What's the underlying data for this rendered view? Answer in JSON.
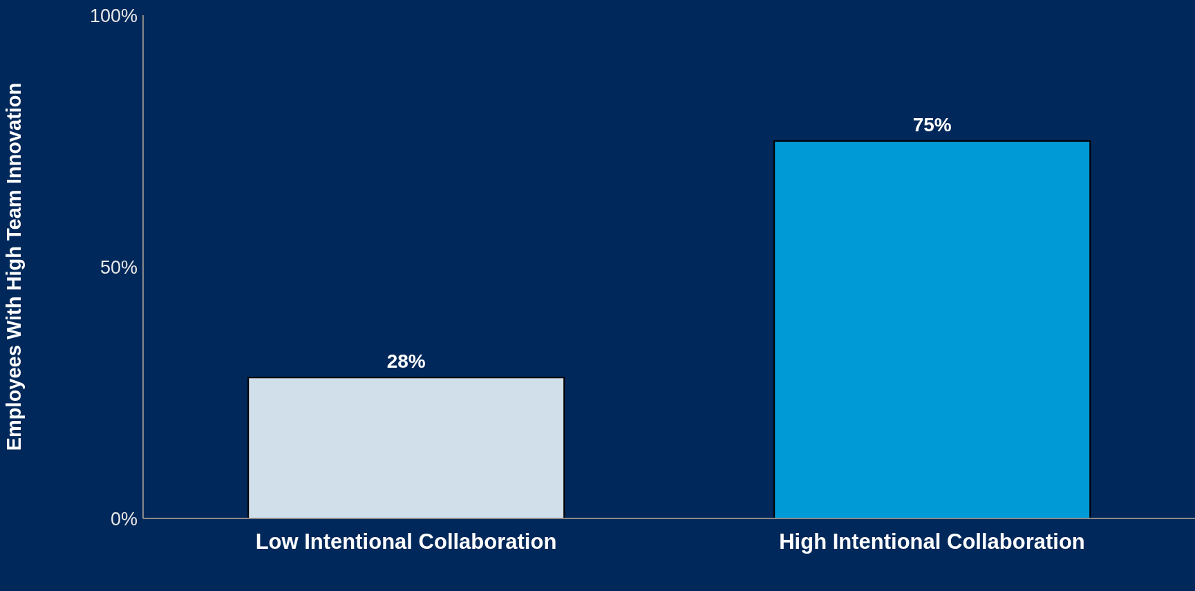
{
  "chart_data": {
    "type": "bar",
    "ylabel": "Employees With High Team Innovation",
    "categories": [
      "Low Intentional Collaboration",
      "High Intentional Collaboration"
    ],
    "values": [
      28,
      75
    ],
    "value_labels": [
      "28%",
      "75%"
    ],
    "colors": [
      "#d1dfea",
      "#009ad7"
    ],
    "ylim": [
      0,
      100
    ],
    "yticks": [
      {
        "value": 0,
        "label": "0%"
      },
      {
        "value": 50,
        "label": "50%"
      },
      {
        "value": 100,
        "label": "100%"
      }
    ],
    "grid": false,
    "legend": false
  }
}
